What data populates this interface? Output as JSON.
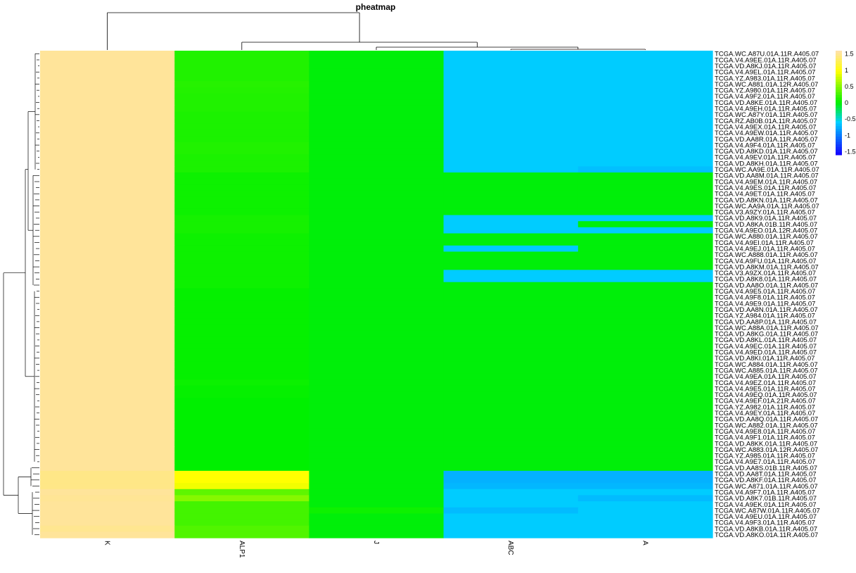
{
  "chart_data": {
    "type": "heatmap",
    "title": "pheatmap",
    "columns": [
      "K",
      "ALP1",
      "J",
      "ABC",
      "A"
    ],
    "rows": [
      "TCGA.WC.A87U.01A.11R.A405.07",
      "TCGA.V4.A9EE.01A.11R.A405.07",
      "TCGA.VD.A8KJ.01A.11R.A405.07",
      "TCGA.V4.A9EL.01A.11R.A405.07",
      "TCGA.YZ.A983.01A.11R.A405.07",
      "TCGA.WC.A881.01A.12R.A405.07",
      "TCGA.YZ.A980.01A.11R.A405.07",
      "TCGA.V4.A9F2.01A.11R.A405.07",
      "TCGA.VD.A8KE.01A.11R.A405.07",
      "TCGA.V4.A9EH.01A.11R.A405.07",
      "TCGA.WC.A87Y.01A.11R.A405.07",
      "TCGA.RZ.AB0B.01A.11R.A405.07",
      "TCGA.V4.A9EX.01A.11R.A405.07",
      "TCGA.V4.A9EW.01A.11R.A405.07",
      "TCGA.VD.AA8R.01A.11R.A405.07",
      "TCGA.V4.A9F4.01A.11R.A405.07",
      "TCGA.VD.A8KD.01A.11R.A405.07",
      "TCGA.V4.A9EV.01A.11R.A405.07",
      "TCGA.VD.A8KH.01A.11R.A405.07",
      "TCGA.WC.AA9E.01A.11R.A405.07",
      "TCGA.VD.AA8M.01A.11R.A405.07",
      "TCGA.V4.A9EM.01A.11R.A405.07",
      "TCGA.V4.A9ES.01A.11R.A405.07",
      "TCGA.V4.A9ET.01A.11R.A405.07",
      "TCGA.VD.A8KN.01A.11R.A405.07",
      "TCGA.WC.AA9A.01A.11R.A405.07",
      "TCGA.V3.A9ZY.01A.11R.A405.07",
      "TCGA.VD.A8K9.01A.11R.A405.07",
      "TCGA.VD.A8KA.01B.11R.A405.07",
      "TCGA.V4.A9EO.01A.12R.A405.07",
      "TCGA.WC.A880.01A.11R.A405.07",
      "TCGA.V4.A9EI.01A.11R.A405.07",
      "TCGA.V4.A9EJ.01A.11R.A405.07",
      "TCGA.WC.A888.01A.11R.A405.07",
      "TCGA.V4.A9FU.01A.11R.A405.07",
      "TCGA.VD.A8KM.01A.11R.A405.07",
      "TCGA.V3.A9ZX.01A.11R.A405.07",
      "TCGA.VD.A8K8.01A.11R.A405.07",
      "TCGA.VD.AA8O.01A.11R.A405.07",
      "TCGA.V4.A9E5.01A.11R.A405.07",
      "TCGA.V4.A9F8.01A.11R.A405.07",
      "TCGA.V4.A9E9.01A.11R.A405.07",
      "TCGA.VD.AA8N.01A.11R.A405.07",
      "TCGA.YZ.A984.01A.11R.A405.07",
      "TCGA.VD.AA8P.01A.11R.A405.07",
      "TCGA.WC.A88A.01A.11R.A405.07",
      "TCGA.VD.A8KG.01A.11R.A405.07",
      "TCGA.VD.A8KL.01A.11R.A405.07",
      "TCGA.V4.A9EC.01A.11R.A405.07",
      "TCGA.V4.A9ED.01A.11R.A405.07",
      "TCGA.VD.A8KI.01A.11R.A405.07",
      "TCGA.WC.A884.01A.11R.A405.07",
      "TCGA.WC.A885.01A.11R.A405.07",
      "TCGA.V4.A9EA.01A.11R.A405.07",
      "TCGA.V4.A9EZ.01A.11R.A405.07",
      "TCGA.V4.A9E5.01A.11R.A405.07",
      "TCGA.V4.A9EQ.01A.11R.A405.07",
      "TCGA.V4.A9EF.01A.21R.A405.07",
      "TCGA.YZ.A982.01A.11R.A405.07",
      "TCGA.V4.A9EY.01A.11R.A405.07",
      "TCGA.VD.AA8Q.01A.11R.A405.07",
      "TCGA.WC.A882.01A.11R.A405.07",
      "TCGA.V4.A9E8.01A.11R.A405.07",
      "TCGA.V4.A9F1.01A.11R.A405.07",
      "TCGA.VD.A8KK.01A.11R.A405.07",
      "TCGA.WC.A883.01A.12R.A405.07",
      "TCGA.YZ.A985.01A.11R.A405.07",
      "TCGA.V4.A9E7.01A.11R.A405.07",
      "TCGA.VD.AA8S.01B.11R.A405.07",
      "TCGA.VD.AA8T.01A.11R.A405.07",
      "TCGA.VD.A8KF.01A.11R.A405.07",
      "TCGA.WC.A871.01A.11R.A405.07",
      "TCGA.V4.A9F7.01A.11R.A405.07",
      "TCGA.VD.A8K7.01B.11R.A405.07",
      "TCGA.V4.A9EK.01A.11R.A405.07",
      "TCGA.WC.A87W.01A.11R.A405.07",
      "TCGA.V4.A9EU.01A.11R.A405.07",
      "TCGA.V4.A9F3.01A.11R.A405.07",
      "TCGA.VD.A8KB.01A.11R.A405.07",
      "TCGA.VD.A8KO.01A.11R.A405.07"
    ],
    "values": [
      [
        1.52,
        0.12,
        -0.02,
        -0.62,
        -0.62
      ],
      [
        1.52,
        0.12,
        -0.02,
        -0.62,
        -0.62
      ],
      [
        1.52,
        0.12,
        -0.02,
        -0.62,
        -0.62
      ],
      [
        1.52,
        0.12,
        -0.02,
        -0.62,
        -0.62
      ],
      [
        1.52,
        0.12,
        -0.02,
        -0.62,
        -0.62
      ],
      [
        1.52,
        0.14,
        -0.02,
        -0.62,
        -0.62
      ],
      [
        1.52,
        0.13,
        -0.02,
        -0.62,
        -0.62
      ],
      [
        1.52,
        0.12,
        -0.02,
        -0.62,
        -0.62
      ],
      [
        1.52,
        0.12,
        -0.02,
        -0.62,
        -0.62
      ],
      [
        1.52,
        0.12,
        -0.02,
        -0.62,
        -0.62
      ],
      [
        1.52,
        0.1,
        -0.02,
        -0.62,
        -0.62
      ],
      [
        1.52,
        0.1,
        -0.02,
        -0.62,
        -0.62
      ],
      [
        1.52,
        0.1,
        -0.02,
        -0.62,
        -0.62
      ],
      [
        1.52,
        0.1,
        -0.02,
        -0.62,
        -0.62
      ],
      [
        1.52,
        0.1,
        -0.02,
        -0.62,
        -0.62
      ],
      [
        1.52,
        0.12,
        -0.02,
        -0.62,
        -0.62
      ],
      [
        1.52,
        0.12,
        -0.02,
        -0.62,
        -0.62
      ],
      [
        1.52,
        0.1,
        -0.02,
        -0.62,
        -0.62
      ],
      [
        1.52,
        0.1,
        -0.02,
        -0.62,
        -0.62
      ],
      [
        1.52,
        0.1,
        -0.02,
        -0.62,
        -0.68
      ],
      [
        1.52,
        0.05,
        -0.02,
        -0.02,
        -0.02
      ],
      [
        1.52,
        0.05,
        -0.02,
        -0.02,
        -0.02
      ],
      [
        1.52,
        0.05,
        -0.02,
        -0.02,
        -0.02
      ],
      [
        1.52,
        0.05,
        -0.02,
        -0.02,
        -0.02
      ],
      [
        1.52,
        0.05,
        -0.02,
        -0.02,
        -0.02
      ],
      [
        1.52,
        0.05,
        -0.02,
        -0.02,
        -0.02
      ],
      [
        1.52,
        0.05,
        -0.02,
        -0.02,
        -0.02
      ],
      [
        1.52,
        0.08,
        -0.02,
        -0.62,
        -0.62
      ],
      [
        1.52,
        0.08,
        -0.02,
        -0.62,
        -0.02
      ],
      [
        1.52,
        0.08,
        -0.02,
        -0.62,
        -0.62
      ],
      [
        1.52,
        0.05,
        -0.02,
        -0.02,
        -0.02
      ],
      [
        1.52,
        0.05,
        -0.02,
        -0.02,
        -0.02
      ],
      [
        1.52,
        0.05,
        -0.02,
        -0.62,
        -0.02
      ],
      [
        1.52,
        0.05,
        -0.02,
        -0.02,
        -0.02
      ],
      [
        1.52,
        0.05,
        -0.02,
        -0.02,
        -0.02
      ],
      [
        1.52,
        0.05,
        -0.02,
        -0.02,
        -0.02
      ],
      [
        1.52,
        0.05,
        -0.02,
        -0.62,
        -0.62
      ],
      [
        1.52,
        0.05,
        -0.02,
        -0.62,
        -0.62
      ],
      [
        1.52,
        0.05,
        -0.02,
        -0.02,
        -0.02
      ],
      [
        1.52,
        0.02,
        -0.02,
        -0.02,
        -0.02
      ],
      [
        1.52,
        0.02,
        -0.02,
        -0.02,
        -0.02
      ],
      [
        1.52,
        0.02,
        -0.02,
        -0.02,
        -0.02
      ],
      [
        1.52,
        0.02,
        -0.02,
        -0.02,
        -0.02
      ],
      [
        1.52,
        0.02,
        -0.02,
        -0.02,
        -0.02
      ],
      [
        1.52,
        0.02,
        -0.02,
        -0.02,
        -0.02
      ],
      [
        1.52,
        0.02,
        -0.02,
        -0.02,
        -0.02
      ],
      [
        1.52,
        0.02,
        -0.02,
        -0.02,
        -0.02
      ],
      [
        1.52,
        0.02,
        -0.02,
        -0.02,
        -0.02
      ],
      [
        1.52,
        0.02,
        -0.02,
        -0.02,
        -0.02
      ],
      [
        1.52,
        0.02,
        -0.02,
        -0.02,
        -0.02
      ],
      [
        1.52,
        0.02,
        -0.02,
        -0.02,
        -0.02
      ],
      [
        1.52,
        0.02,
        -0.02,
        -0.02,
        -0.02
      ],
      [
        1.52,
        0.02,
        -0.02,
        -0.02,
        -0.02
      ],
      [
        1.52,
        0.02,
        -0.02,
        -0.02,
        -0.02
      ],
      [
        1.52,
        0.04,
        -0.02,
        -0.02,
        -0.02
      ],
      [
        1.52,
        0.02,
        -0.02,
        -0.02,
        -0.02
      ],
      [
        1.52,
        0.02,
        -0.02,
        -0.02,
        -0.02
      ],
      [
        1.52,
        0.0,
        -0.02,
        -0.02,
        -0.02
      ],
      [
        1.52,
        0.0,
        -0.02,
        -0.02,
        -0.02
      ],
      [
        1.52,
        0.0,
        -0.02,
        -0.02,
        -0.02
      ],
      [
        1.52,
        0.0,
        -0.02,
        -0.02,
        -0.02
      ],
      [
        1.52,
        0.0,
        -0.02,
        -0.02,
        -0.02
      ],
      [
        1.52,
        0.0,
        -0.02,
        -0.02,
        -0.02
      ],
      [
        1.52,
        0.0,
        -0.02,
        -0.02,
        -0.02
      ],
      [
        1.52,
        0.0,
        -0.02,
        -0.02,
        -0.02
      ],
      [
        1.52,
        0.0,
        -0.02,
        -0.02,
        -0.02
      ],
      [
        1.52,
        0.0,
        -0.02,
        -0.02,
        -0.02
      ],
      [
        1.52,
        0.0,
        -0.02,
        -0.02,
        -0.02
      ],
      [
        1.52,
        0.0,
        -0.02,
        -0.02,
        -0.02
      ],
      [
        1.45,
        0.95,
        -0.02,
        -0.75,
        -0.75
      ],
      [
        1.45,
        0.95,
        -0.02,
        -0.75,
        -0.75
      ],
      [
        1.45,
        0.9,
        -0.02,
        -0.72,
        -0.72
      ],
      [
        1.52,
        0.35,
        -0.02,
        -0.62,
        -0.62
      ],
      [
        1.5,
        0.5,
        -0.02,
        -0.62,
        -0.7
      ],
      [
        1.52,
        0.25,
        -0.02,
        -0.62,
        -0.62
      ],
      [
        1.52,
        0.25,
        0.05,
        -0.7,
        -0.62
      ],
      [
        1.52,
        0.25,
        -0.02,
        -0.62,
        -0.62
      ],
      [
        1.52,
        0.25,
        -0.02,
        -0.62,
        -0.62
      ],
      [
        1.48,
        0.3,
        -0.02,
        -0.62,
        -0.62
      ],
      [
        1.52,
        0.3,
        -0.02,
        -0.62,
        -0.62
      ]
    ],
    "legend": {
      "ticks": [
        "1.5",
        "1",
        "0.5",
        "0",
        "-0.5",
        "-1",
        "-1.5"
      ],
      "tick_values": [
        1.5,
        1,
        0.5,
        0,
        -0.5,
        -1,
        -1.5
      ],
      "range": [
        -1.6,
        1.6
      ],
      "colors": [
        "#1400ff",
        "#00d0ff",
        "#00f000",
        "#ffff00",
        "#ffe0b0"
      ],
      "color_stops": [
        -1.6,
        -0.6,
        0.0,
        0.95,
        1.6
      ]
    },
    "column_dendrogram": true,
    "row_dendrogram": true,
    "grid": false
  }
}
